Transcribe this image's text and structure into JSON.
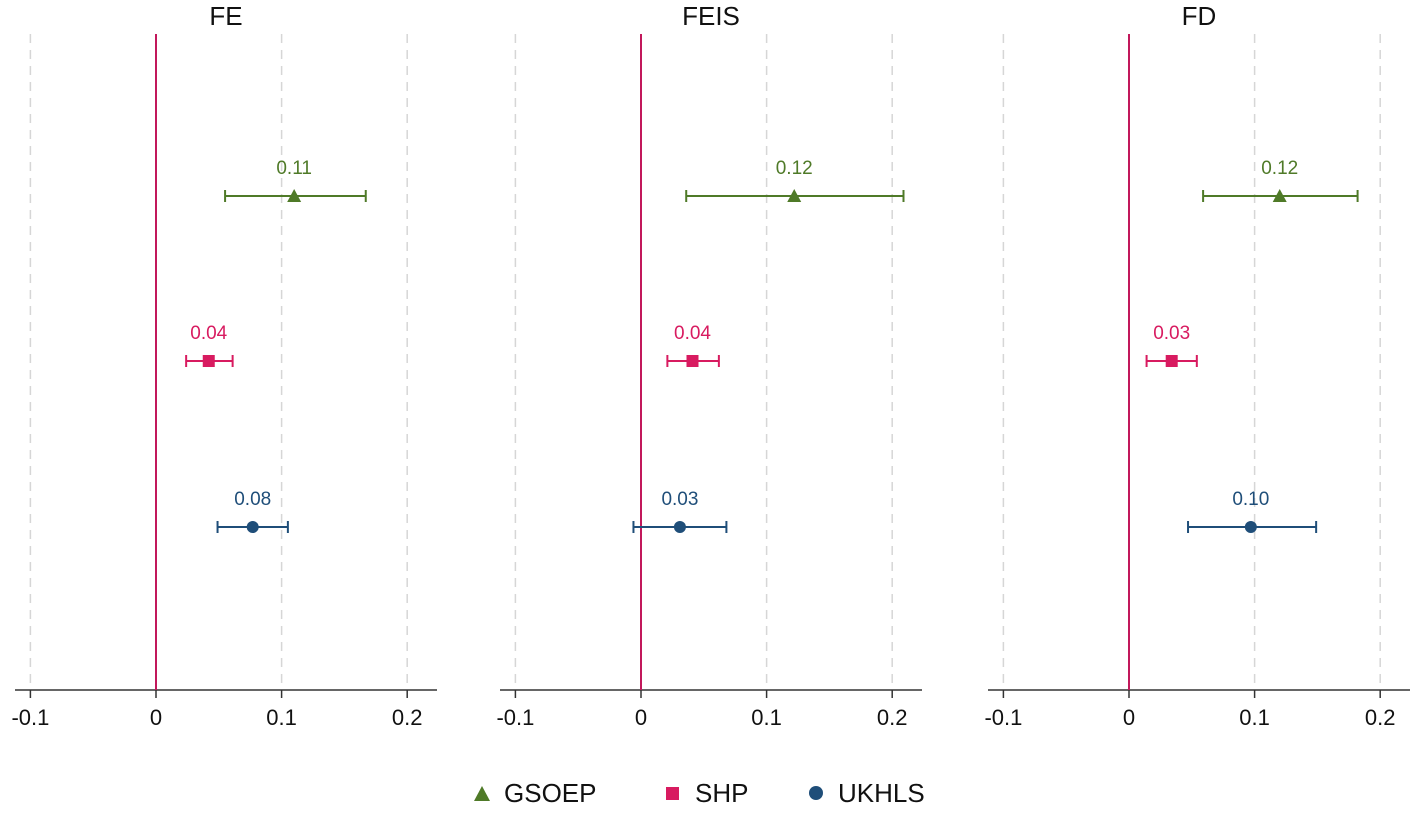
{
  "chart_data": {
    "type": "scatter",
    "subtype": "coefficient-plot",
    "x_ticks": [
      -0.1,
      0,
      0.1,
      0.2
    ],
    "x_tick_labels": [
      "-0.1",
      "0",
      "0.1",
      "0.2"
    ],
    "xlim": [
      -0.115,
      0.225
    ],
    "grid": true,
    "reference_line": 0,
    "legend": {
      "position": "bottom",
      "entries": [
        {
          "name": "GSOEP",
          "marker": "triangle",
          "color": "#4f7a28"
        },
        {
          "name": "SHP",
          "marker": "square",
          "color": "#d81b60"
        },
        {
          "name": "UKHLS",
          "marker": "circle",
          "color": "#1f4e79"
        }
      ]
    },
    "series_colors": {
      "GSOEP": "#4f7a28",
      "SHP": "#d81b60",
      "UKHLS": "#1f4e79",
      "reference_line": "#c2185b",
      "axis": "#333333",
      "grid": "#d6d6d6"
    },
    "panels": [
      {
        "title": "FE",
        "estimates": [
          {
            "series": "GSOEP",
            "value": 0.11,
            "ci": [
              0.055,
              0.167
            ],
            "label": "0.11"
          },
          {
            "series": "SHP",
            "value": 0.042,
            "ci": [
              0.024,
              0.061
            ],
            "label": "0.04"
          },
          {
            "series": "UKHLS",
            "value": 0.077,
            "ci": [
              0.049,
              0.105
            ],
            "label": "0.08"
          }
        ]
      },
      {
        "title": "FEIS",
        "estimates": [
          {
            "series": "GSOEP",
            "value": 0.122,
            "ci": [
              0.036,
              0.209
            ],
            "label": "0.12"
          },
          {
            "series": "SHP",
            "value": 0.041,
            "ci": [
              0.021,
              0.062
            ],
            "label": "0.04"
          },
          {
            "series": "UKHLS",
            "value": 0.031,
            "ci": [
              -0.006,
              0.068
            ],
            "label": "0.03"
          }
        ]
      },
      {
        "title": "FD",
        "estimates": [
          {
            "series": "GSOEP",
            "value": 0.12,
            "ci": [
              0.059,
              0.182
            ],
            "label": "0.12"
          },
          {
            "series": "SHP",
            "value": 0.034,
            "ci": [
              0.014,
              0.054
            ],
            "label": "0.03"
          },
          {
            "series": "UKHLS",
            "value": 0.097,
            "ci": [
              0.047,
              0.149
            ],
            "label": "0.10"
          }
        ]
      }
    ]
  }
}
